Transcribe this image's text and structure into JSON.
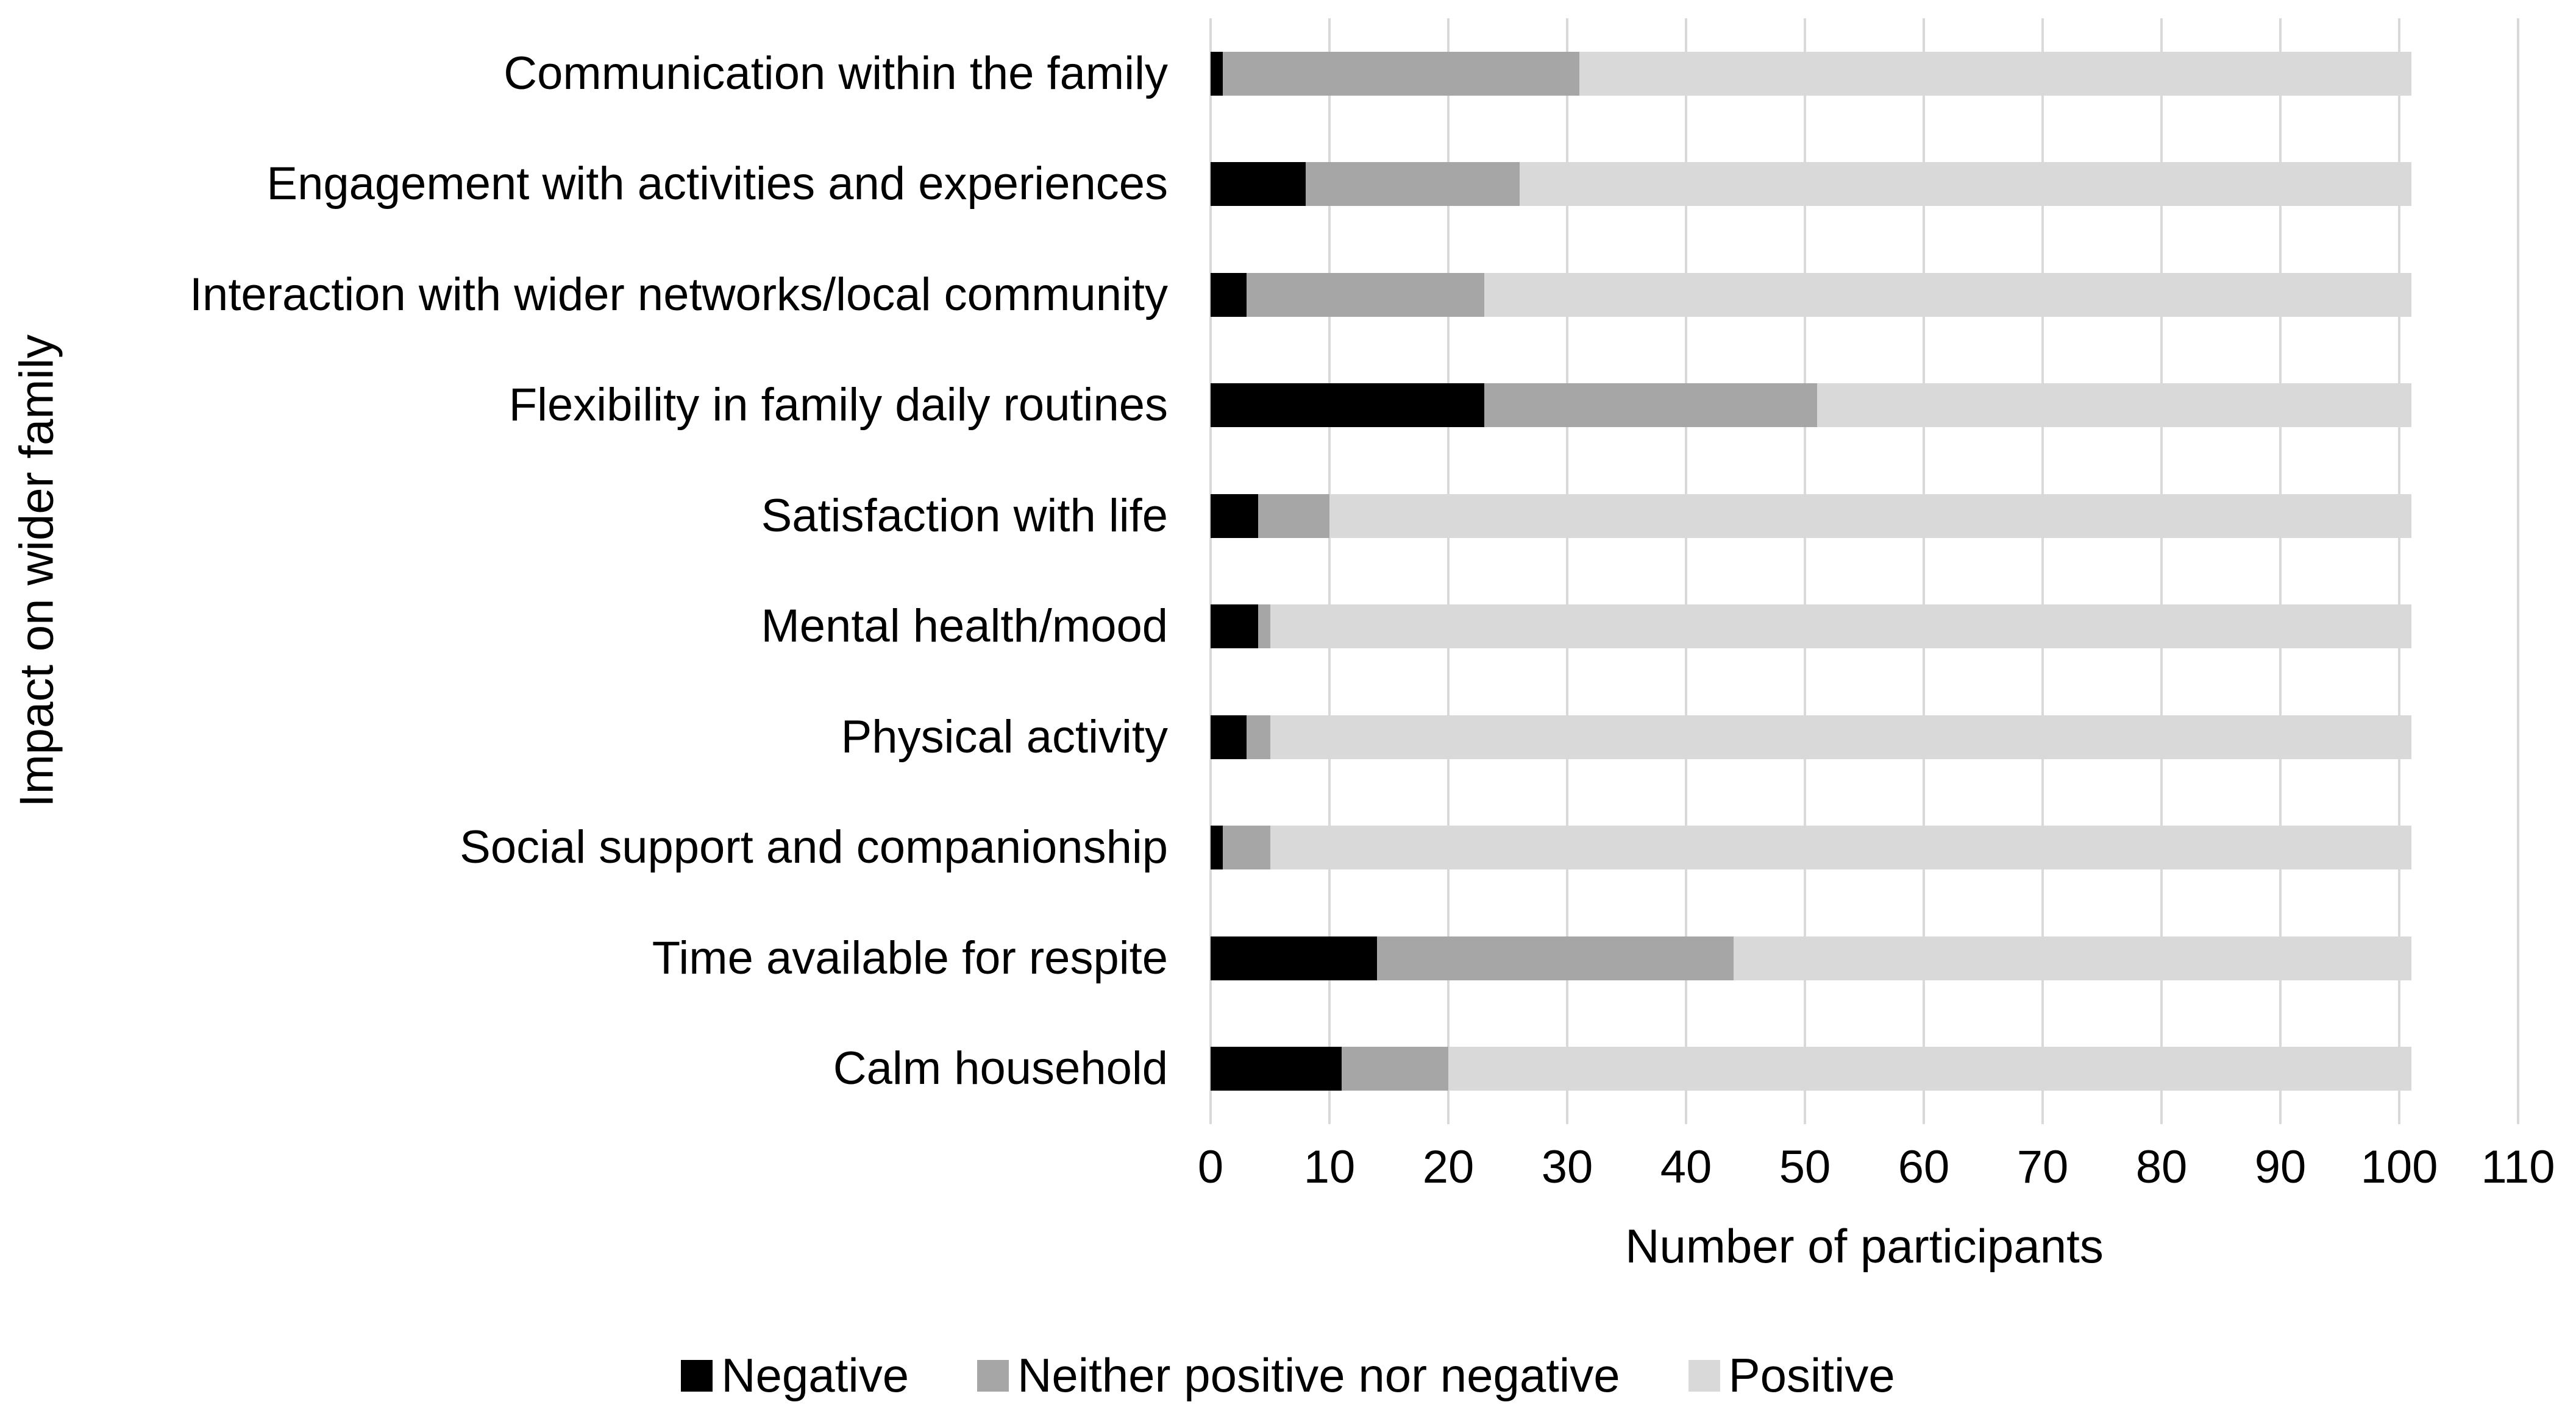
{
  "chart_data": {
    "type": "bar",
    "orientation": "horizontal",
    "stacked": true,
    "xlabel": "Number of participants",
    "ylabel": "Impact on wider family",
    "xlim": [
      0,
      110
    ],
    "xticks": [
      0,
      10,
      20,
      30,
      40,
      50,
      60,
      70,
      80,
      90,
      100,
      110
    ],
    "grid": true,
    "legend_position": "bottom",
    "categories": [
      "Communication within the family",
      "Engagement with activities and experiences",
      "Interaction with wider networks/local community",
      "Flexibility in family daily routines",
      "Satisfaction with life",
      "Mental health/mood",
      "Physical activity",
      "Social support and companionship",
      "Time available for respite",
      "Calm household"
    ],
    "series": [
      {
        "name": "Negative",
        "color": "#000000",
        "values": [
          1,
          8,
          3,
          23,
          4,
          4,
          3,
          1,
          14,
          11
        ]
      },
      {
        "name": "Neither positive nor negative",
        "color": "#a6a6a6",
        "values": [
          30,
          18,
          20,
          28,
          6,
          1,
          2,
          4,
          30,
          9
        ]
      },
      {
        "name": "Positive",
        "color": "#d9d9d9",
        "values": [
          70,
          75,
          78,
          50,
          91,
          96,
          96,
          96,
          57,
          81
        ]
      }
    ],
    "colors": {
      "gridline": "#d9d9d9",
      "background": "#ffffff",
      "text": "#000000"
    }
  }
}
